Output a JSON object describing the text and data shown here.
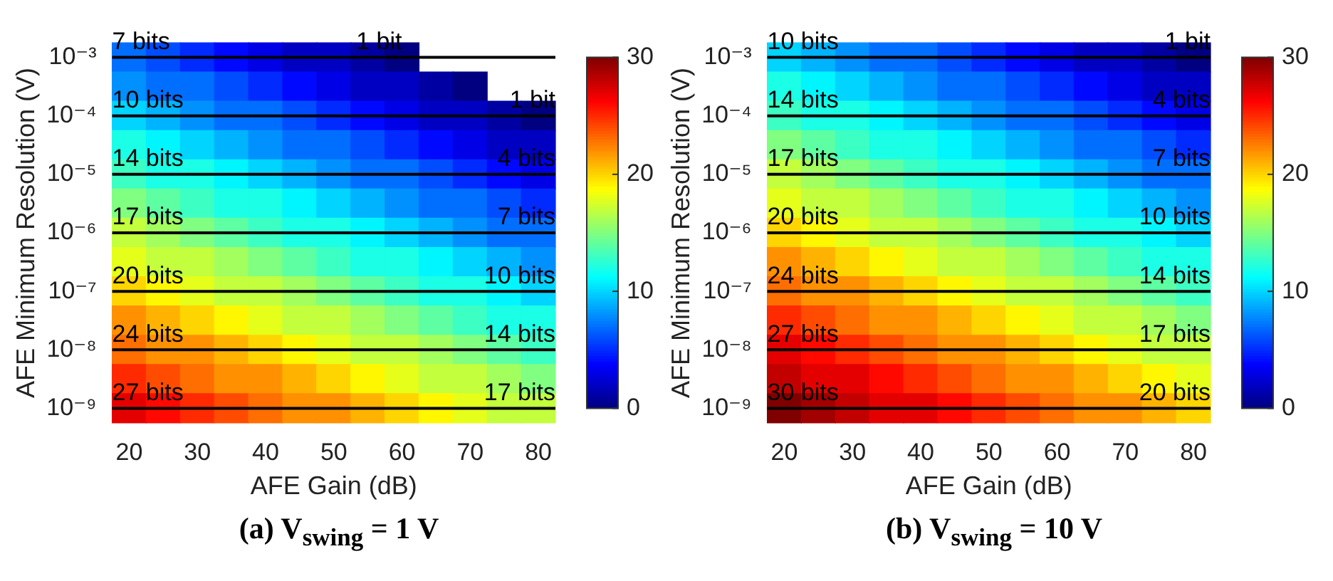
{
  "chart_data": [
    {
      "type": "heatmap",
      "title": "(a) V$_{swing}$ = 1 V",
      "xlabel": "AFE Gain (dB)",
      "ylabel": "AFE Minimum Resolution (V)",
      "categories": [
        "20",
        null,
        "30",
        null,
        "40",
        null,
        "50",
        null,
        "60",
        null,
        "70",
        null,
        "80"
      ],
      "y_categories": [
        "10⁻³",
        null,
        "10⁻⁴",
        null,
        "10⁻⁵",
        null,
        "10⁻⁶",
        null,
        "10⁻⁷",
        null,
        "10⁻⁸",
        null,
        "10⁻⁹"
      ],
      "cells": [
        [
          7,
          6,
          5,
          4,
          3,
          2,
          2,
          1,
          0,
          null,
          null,
          null,
          null
        ],
        [
          8,
          7,
          7,
          6,
          5,
          4,
          3,
          2,
          2,
          1,
          0,
          null,
          null
        ],
        [
          10,
          9,
          8,
          7,
          7,
          6,
          5,
          4,
          3,
          2,
          2,
          1,
          0
        ],
        [
          12,
          11,
          10,
          9,
          8,
          7,
          7,
          6,
          5,
          4,
          3,
          2,
          2
        ],
        [
          13,
          12,
          12,
          11,
          10,
          9,
          8,
          7,
          7,
          6,
          5,
          4,
          3
        ],
        [
          15,
          14,
          13,
          12,
          12,
          11,
          10,
          9,
          8,
          7,
          7,
          6,
          5
        ],
        [
          17,
          16,
          15,
          14,
          13,
          12,
          12,
          11,
          10,
          9,
          8,
          7,
          7
        ],
        [
          18,
          17,
          17,
          16,
          15,
          14,
          13,
          12,
          12,
          11,
          10,
          9,
          8
        ],
        [
          20,
          19,
          18,
          17,
          17,
          16,
          15,
          14,
          13,
          12,
          12,
          11,
          10
        ],
        [
          22,
          21,
          20,
          19,
          18,
          17,
          17,
          16,
          15,
          14,
          13,
          12,
          12
        ],
        [
          23,
          22,
          22,
          21,
          20,
          19,
          18,
          17,
          17,
          16,
          15,
          14,
          13
        ],
        [
          25,
          24,
          23,
          22,
          22,
          21,
          20,
          19,
          18,
          17,
          17,
          16,
          15
        ],
        [
          27,
          26,
          25,
          24,
          23,
          22,
          22,
          21,
          20,
          19,
          18,
          17,
          17
        ]
      ],
      "clim": [
        0,
        30
      ],
      "cticks": [
        0,
        10,
        20,
        30
      ],
      "ref_lines": [
        {
          "axis": "y",
          "value": "10⁻³",
          "color": "#000000"
        },
        {
          "axis": "y",
          "value": "10⁻⁴",
          "color": "#000000"
        },
        {
          "axis": "y",
          "value": "10⁻⁵",
          "color": "#000000"
        },
        {
          "axis": "y",
          "value": "10⁻⁶",
          "color": "#000000"
        },
        {
          "axis": "y",
          "value": "10⁻⁷",
          "color": "#000000"
        },
        {
          "axis": "y",
          "value": "10⁻⁸",
          "color": "#000000"
        },
        {
          "axis": "y",
          "value": "10⁻⁹",
          "color": "#000000"
        }
      ],
      "annotations": [
        {
          "text": "7 bits",
          "x": "20",
          "y": "10⁻³"
        },
        {
          "text": "1 bit",
          "x": "60",
          "y": "10⁻³"
        },
        {
          "text": "10 bits",
          "x": "20",
          "y": "10⁻⁴"
        },
        {
          "text": "1 bit",
          "x": "80",
          "y": "10⁻⁴"
        },
        {
          "text": "14 bits",
          "x": "20",
          "y": "10⁻⁵"
        },
        {
          "text": "4 bits",
          "x": "80",
          "y": "10⁻⁵"
        },
        {
          "text": "17 bits",
          "x": "20",
          "y": "10⁻⁶"
        },
        {
          "text": "7 bits",
          "x": "80",
          "y": "10⁻⁶"
        },
        {
          "text": "20 bits",
          "x": "20",
          "y": "10⁻⁷"
        },
        {
          "text": "10 bits",
          "x": "80",
          "y": "10⁻⁷"
        },
        {
          "text": "24 bits",
          "x": "20",
          "y": "10⁻⁸"
        },
        {
          "text": "14 bits",
          "x": "80",
          "y": "10⁻⁸"
        },
        {
          "text": "27 bits",
          "x": "20",
          "y": "10⁻⁹"
        },
        {
          "text": "17 bits",
          "x": "80",
          "y": "10⁻⁹"
        }
      ]
    },
    {
      "type": "heatmap",
      "title": "(b) V$_{swing}$ = 10 V",
      "xlabel": "AFE Gain (dB)",
      "ylabel": "AFE Minimum Resolution (V)",
      "categories": [
        "20",
        null,
        "30",
        null,
        "40",
        null,
        "50",
        null,
        "60",
        null,
        "70",
        null,
        "80"
      ],
      "y_categories": [
        "10⁻³",
        null,
        "10⁻⁴",
        null,
        "10⁻⁵",
        null,
        "10⁻⁶",
        null,
        "10⁻⁷",
        null,
        "10⁻⁸",
        null,
        "10⁻⁹"
      ],
      "cells": [
        [
          10,
          9,
          8,
          7,
          7,
          6,
          5,
          4,
          3,
          2,
          2,
          1,
          0
        ],
        [
          12,
          11,
          10,
          9,
          8,
          7,
          7,
          6,
          5,
          4,
          3,
          2,
          2
        ],
        [
          13,
          12,
          12,
          11,
          10,
          9,
          8,
          7,
          7,
          6,
          5,
          4,
          3
        ],
        [
          15,
          14,
          13,
          12,
          12,
          11,
          10,
          9,
          8,
          7,
          7,
          6,
          5
        ],
        [
          17,
          16,
          15,
          14,
          13,
          12,
          12,
          11,
          10,
          9,
          8,
          7,
          7
        ],
        [
          18,
          17,
          17,
          16,
          15,
          14,
          13,
          12,
          12,
          11,
          10,
          9,
          8
        ],
        [
          20,
          19,
          18,
          17,
          17,
          16,
          15,
          14,
          13,
          12,
          12,
          11,
          10
        ],
        [
          22,
          21,
          20,
          19,
          18,
          17,
          17,
          16,
          15,
          14,
          13,
          12,
          12
        ],
        [
          23,
          22,
          22,
          21,
          20,
          19,
          18,
          17,
          17,
          16,
          15,
          14,
          13
        ],
        [
          25,
          24,
          23,
          22,
          22,
          21,
          20,
          19,
          18,
          17,
          17,
          16,
          15
        ],
        [
          27,
          26,
          25,
          24,
          23,
          22,
          22,
          21,
          20,
          19,
          18,
          17,
          17
        ],
        [
          28,
          27,
          27,
          26,
          25,
          24,
          23,
          22,
          22,
          21,
          20,
          19,
          18
        ],
        [
          30,
          29,
          28,
          27,
          27,
          26,
          25,
          24,
          23,
          22,
          22,
          21,
          20
        ]
      ],
      "clim": [
        0,
        30
      ],
      "cticks": [
        0,
        10,
        20,
        30
      ],
      "ref_lines": [
        {
          "axis": "y",
          "value": "10⁻³",
          "color": "#000000"
        },
        {
          "axis": "y",
          "value": "10⁻⁴",
          "color": "#000000"
        },
        {
          "axis": "y",
          "value": "10⁻⁵",
          "color": "#000000"
        },
        {
          "axis": "y",
          "value": "10⁻⁶",
          "color": "#000000"
        },
        {
          "axis": "y",
          "value": "10⁻⁷",
          "color": "#000000"
        },
        {
          "axis": "y",
          "value": "10⁻⁸",
          "color": "#000000"
        },
        {
          "axis": "y",
          "value": "10⁻⁹",
          "color": "#000000"
        }
      ],
      "annotations": [
        {
          "text": "10 bits",
          "x": "20",
          "y": "10⁻³"
        },
        {
          "text": "1 bit",
          "x": "80",
          "y": "10⁻³"
        },
        {
          "text": "14 bits",
          "x": "20",
          "y": "10⁻⁴"
        },
        {
          "text": "4 bits",
          "x": "80",
          "y": "10⁻⁴"
        },
        {
          "text": "17 bits",
          "x": "20",
          "y": "10⁻⁵"
        },
        {
          "text": "7 bits",
          "x": "80",
          "y": "10⁻⁵"
        },
        {
          "text": "20 bits",
          "x": "20",
          "y": "10⁻⁶"
        },
        {
          "text": "10 bits",
          "x": "80",
          "y": "10⁻⁶"
        },
        {
          "text": "24 bits",
          "x": "20",
          "y": "10⁻⁷"
        },
        {
          "text": "14 bits",
          "x": "80",
          "y": "10⁻⁷"
        },
        {
          "text": "27 bits",
          "x": "20",
          "y": "10⁻⁸"
        },
        {
          "text": "17 bits",
          "x": "80",
          "y": "10⁻⁸"
        },
        {
          "text": "30 bits",
          "x": "20",
          "y": "10⁻⁹"
        },
        {
          "text": "20 bits",
          "x": "80",
          "y": "10⁻⁹"
        }
      ]
    }
  ]
}
